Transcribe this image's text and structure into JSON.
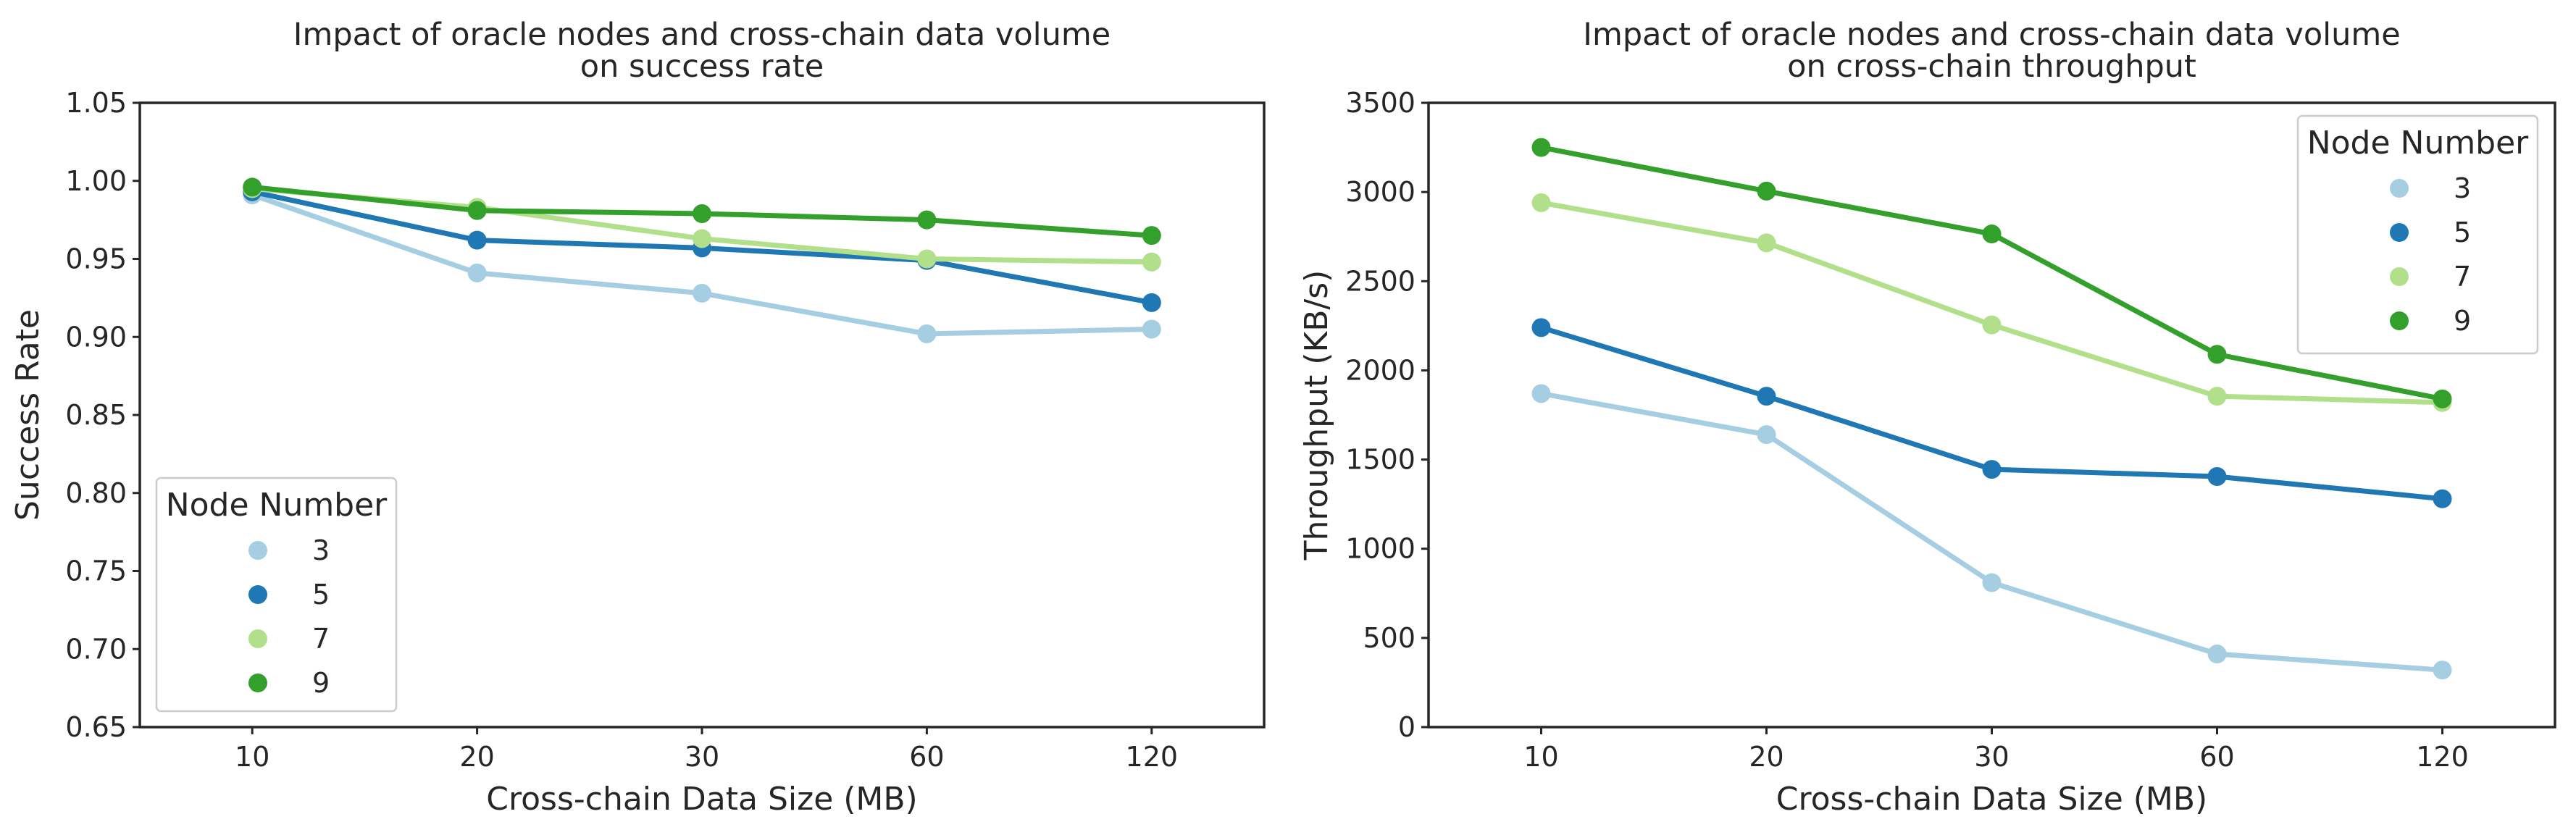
{
  "chart_data": [
    {
      "type": "line",
      "title_lines": [
        "Impact of oracle nodes and cross-chain data volume",
        "on success rate"
      ],
      "xlabel": "Cross-chain Data Size (MB)",
      "ylabel": "Success Rate",
      "categories": [
        "10",
        "20",
        "30",
        "60",
        "120"
      ],
      "ylim": [
        0.65,
        1.05
      ],
      "yticks": [
        0.65,
        0.7,
        0.75,
        0.8,
        0.85,
        0.9,
        0.95,
        1.0,
        1.05
      ],
      "ytick_labels": [
        "0.65",
        "0.70",
        "0.75",
        "0.80",
        "0.85",
        "0.90",
        "0.95",
        "1.00",
        "1.05"
      ],
      "grid": false,
      "legend": {
        "title": "Node Number",
        "position": "lower-left"
      },
      "series": [
        {
          "name": "3",
          "color": "#a6cee3",
          "values": [
            0.991,
            0.941,
            0.928,
            0.902,
            0.905
          ]
        },
        {
          "name": "5",
          "color": "#1f78b4",
          "values": [
            0.993,
            0.962,
            0.957,
            0.949,
            0.922
          ]
        },
        {
          "name": "7",
          "color": "#b2df8a",
          "values": [
            0.995,
            0.983,
            0.963,
            0.95,
            0.948
          ]
        },
        {
          "name": "9",
          "color": "#33a02c",
          "values": [
            0.996,
            0.981,
            0.979,
            0.975,
            0.965
          ]
        }
      ]
    },
    {
      "type": "line",
      "title_lines": [
        "Impact of oracle nodes and cross-chain data volume",
        "on cross-chain throughput"
      ],
      "xlabel": "Cross-chain Data Size (MB)",
      "ylabel": "Throughput (KB/s)",
      "categories": [
        "10",
        "20",
        "30",
        "60",
        "120"
      ],
      "ylim": [
        0,
        3500
      ],
      "yticks": [
        0,
        500,
        1000,
        1500,
        2000,
        2500,
        3000,
        3500
      ],
      "ytick_labels": [
        "0",
        "500",
        "1000",
        "1500",
        "2000",
        "2500",
        "3000",
        "3500"
      ],
      "grid": false,
      "legend": {
        "title": "Node Number",
        "position": "upper-right"
      },
      "series": [
        {
          "name": "3",
          "color": "#a6cee3",
          "values": [
            1870,
            1640,
            810,
            410,
            320
          ]
        },
        {
          "name": "5",
          "color": "#1f78b4",
          "values": [
            2240,
            1855,
            1445,
            1405,
            1280
          ]
        },
        {
          "name": "7",
          "color": "#b2df8a",
          "values": [
            2940,
            2715,
            2255,
            1855,
            1820
          ]
        },
        {
          "name": "9",
          "color": "#33a02c",
          "values": [
            3250,
            3005,
            2765,
            2090,
            1840
          ]
        }
      ]
    }
  ]
}
